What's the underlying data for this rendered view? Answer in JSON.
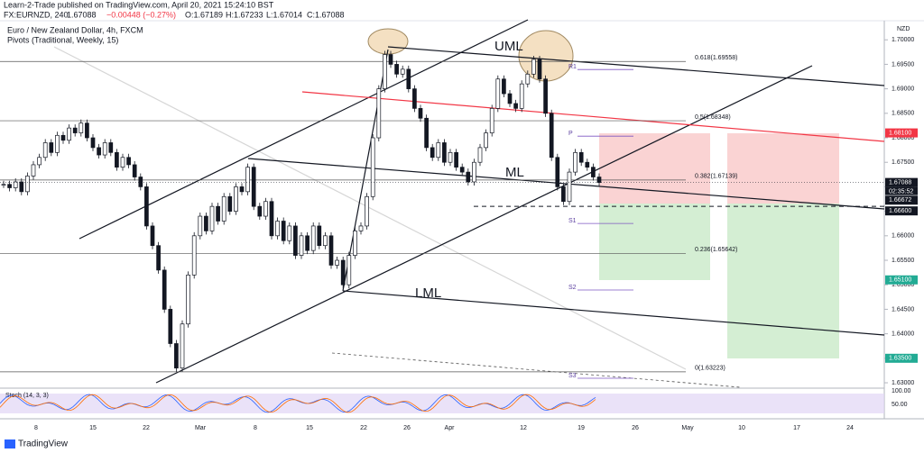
{
  "header": {
    "publisher": "Learn-2-Trade published on TradingView.com, April 20, 2021 15:24:10 BST",
    "symbol": "FX:EURNZD, 240",
    "last": "1.67088",
    "change": "−0.00448 (−0.27%)",
    "open": "O:1.67189",
    "high": "H:1.67233",
    "low": "L:1.67014",
    "close": "C:1.67088"
  },
  "chart_data": {
    "type": "candlestick",
    "title": "Euro / New Zealand Dollar, 4h, FXCM",
    "subtitle": "Pivots (Traditional, Weekly, 15)",
    "currency": "NZD",
    "ylim": [
      1.6289,
      1.7039
    ],
    "yticks": [
      {
        "value": 1.7,
        "label": "1.70000"
      },
      {
        "value": 1.695,
        "label": "1.69500"
      },
      {
        "value": 1.69,
        "label": "1.69000"
      },
      {
        "value": 1.685,
        "label": "1.68500"
      },
      {
        "value": 1.68,
        "label": "1.68000"
      },
      {
        "value": 1.675,
        "label": "1.67500"
      },
      {
        "value": 1.67,
        "label": "1.67000"
      },
      {
        "value": 1.665,
        "label": "1.66500"
      },
      {
        "value": 1.66,
        "label": "1.66000"
      },
      {
        "value": 1.655,
        "label": "1.65500"
      },
      {
        "value": 1.65,
        "label": "1.65000"
      },
      {
        "value": 1.645,
        "label": "1.64500"
      },
      {
        "value": 1.64,
        "label": "1.64000"
      },
      {
        "value": 1.635,
        "label": "1.63500"
      },
      {
        "value": 1.63,
        "label": "1.63000"
      }
    ],
    "x_labels": [
      "8",
      "15",
      "22",
      "Mar",
      "8",
      "15",
      "22",
      "26",
      "Apr",
      "12",
      "19",
      "26",
      "May",
      "10",
      "17",
      "24"
    ],
    "closes": [
      1.6705,
      1.6698,
      1.671,
      1.669,
      1.6722,
      1.6745,
      1.676,
      1.679,
      1.677,
      1.6805,
      1.6795,
      1.682,
      1.681,
      1.683,
      1.68,
      1.678,
      1.6765,
      1.679,
      1.677,
      1.674,
      1.676,
      1.6745,
      1.672,
      1.67,
      1.662,
      1.658,
      1.653,
      1.645,
      1.638,
      1.633,
      1.642,
      1.652,
      1.66,
      1.664,
      1.661,
      1.666,
      1.663,
      1.668,
      1.665,
      1.67,
      1.669,
      1.674,
      1.666,
      1.664,
      1.667,
      1.66,
      1.663,
      1.659,
      1.662,
      1.656,
      1.66,
      1.657,
      1.662,
      1.658,
      1.66,
      1.654,
      1.655,
      1.65,
      1.656,
      1.661,
      1.662,
      1.668,
      1.68,
      1.69,
      1.697,
      1.695,
      1.693,
      1.694,
      1.69,
      1.686,
      1.684,
      1.678,
      1.676,
      1.679,
      1.675,
      1.677,
      1.674,
      1.673,
      1.671,
      1.675,
      1.678,
      1.681,
      1.686,
      1.692,
      1.689,
      1.687,
      1.686,
      1.691,
      1.693,
      1.696,
      1.692,
      1.685,
      1.676,
      1.67,
      1.667,
      1.673,
      1.677,
      1.675,
      1.674,
      1.672,
      1.67088
    ],
    "price_tags": [
      {
        "value": 1.681,
        "label": "1.68100",
        "color": "#f23645"
      },
      {
        "value": 1.67088,
        "label": "1.67088",
        "color": "#131722"
      },
      {
        "value": 1.66672,
        "label": "1.66672",
        "color": "#131722"
      },
      {
        "value": 1.666,
        "label": "1.66600",
        "color": "#131722"
      },
      {
        "value": 1.651,
        "label": "1.65100",
        "color": "#22ab94"
      },
      {
        "value": 1.635,
        "label": "1.63500",
        "color": "#22ab94"
      }
    ],
    "countdown": "02:35:52",
    "fib": [
      {
        "price": 1.69558,
        "label": "0.618(1.69558)"
      },
      {
        "price": 1.68348,
        "label": "0.5(1.68348)"
      },
      {
        "price": 1.67139,
        "label": "0.382(1.67139)"
      },
      {
        "price": 1.65642,
        "label": "0.236(1.65642)"
      },
      {
        "price": 1.63223,
        "label": "0(1.63223)"
      }
    ],
    "pivots": [
      {
        "name": "R1",
        "price": 1.69394
      },
      {
        "name": "P",
        "price": 1.68034
      },
      {
        "name": "S1",
        "price": 1.66252
      },
      {
        "name": "S2",
        "price": 1.64893
      },
      {
        "name": "S3",
        "price": 1.63092
      }
    ],
    "annotations": [
      "UML",
      "ML",
      "LML"
    ],
    "stoch": {
      "title": "Stoch (14, 3, 3)",
      "ticks": [
        "100.00",
        "50.00"
      ]
    }
  },
  "footer": "TradingView"
}
